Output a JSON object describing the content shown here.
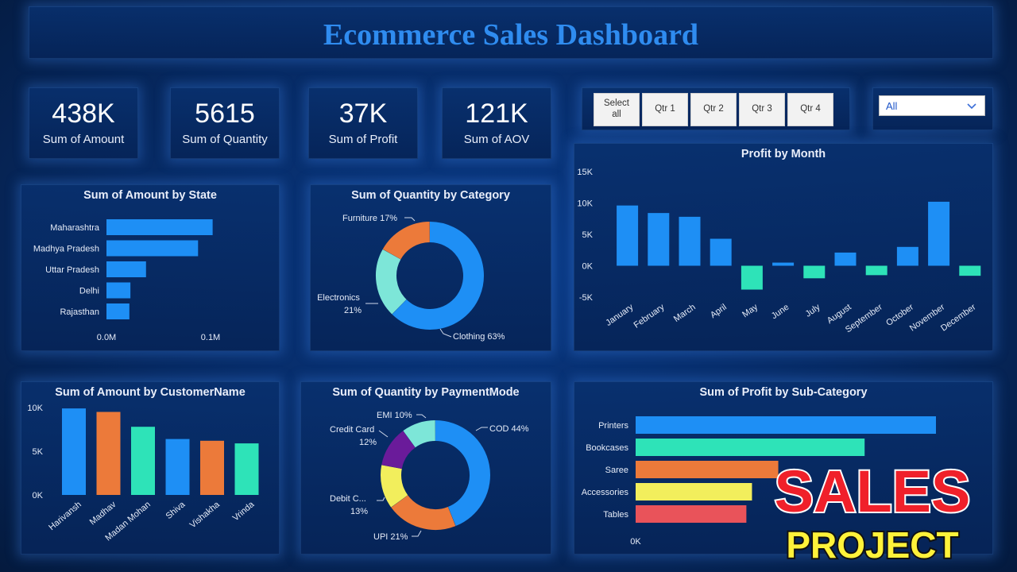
{
  "title": "Ecommerce Sales Dashboard",
  "kpis": [
    {
      "value": "438K",
      "label": "Sum of Amount"
    },
    {
      "value": "5615",
      "label": "Sum of Quantity"
    },
    {
      "value": "37K",
      "label": "Sum of Profit"
    },
    {
      "value": "121K",
      "label": "Sum of AOV"
    }
  ],
  "slicer": {
    "buttons": [
      "Select all",
      "Qtr 1",
      "Qtr 2",
      "Qtr 3",
      "Qtr 4"
    ],
    "dropdown_value": "All"
  },
  "watermark": {
    "line1": "SALES",
    "line2": "PROJECT"
  },
  "colors": {
    "blue": "#1e8ff5",
    "orange": "#ec7a3a",
    "teal": "#2ee3b8",
    "lightteal": "#7de6d8",
    "purple": "#6a1b9a",
    "yellow": "#f2ee5c",
    "red": "#e9535a",
    "title": "#2f8cf0"
  },
  "chart_data": [
    {
      "id": "amount_by_state",
      "type": "bar",
      "orientation": "horizontal",
      "title": "Sum of Amount by State",
      "categories": [
        "Maharashtra",
        "Madhya Pradesh",
        "Uttar Pradesh",
        "Delhi",
        "Rajasthan"
      ],
      "values": [
        0.102,
        0.088,
        0.038,
        0.023,
        0.022
      ],
      "ticks": [
        "0.0M",
        "0.1M"
      ],
      "xlim": [
        0,
        0.1
      ]
    },
    {
      "id": "quantity_by_category",
      "type": "pie",
      "donut": true,
      "title": "Sum of Quantity by Category",
      "categories": [
        "Clothing",
        "Electronics",
        "Furniture"
      ],
      "values": [
        63,
        21,
        17
      ],
      "labels": [
        "Clothing 63%",
        "Electronics",
        "21%",
        "Furniture 17%"
      ]
    },
    {
      "id": "profit_by_month",
      "type": "bar",
      "title": "Profit by Month",
      "categories": [
        "January",
        "February",
        "March",
        "April",
        "May",
        "June",
        "July",
        "August",
        "September",
        "October",
        "November",
        "December"
      ],
      "values": [
        9600,
        8400,
        7800,
        4300,
        -3800,
        500,
        -2000,
        2100,
        -1500,
        3000,
        10200,
        -1600
      ],
      "ylim": [
        -5000,
        15000
      ],
      "ticks": [
        "15K",
        "10K",
        "5K",
        "0K",
        "-5K"
      ]
    },
    {
      "id": "amount_by_customer",
      "type": "bar",
      "title": "Sum of Amount by CustomerName",
      "categories": [
        "Harivansh",
        "Madhav",
        "Madan Mohan",
        "Shiva",
        "Vishakha",
        "Vrinda"
      ],
      "values": [
        9900,
        9500,
        7800,
        6400,
        6200,
        5900
      ],
      "ylim": [
        0,
        10000
      ],
      "ticks": [
        "10K",
        "5K",
        "0K"
      ]
    },
    {
      "id": "quantity_by_paymentmode",
      "type": "pie",
      "donut": true,
      "title": "Sum of Quantity by PaymentMode",
      "categories": [
        "COD",
        "UPI",
        "Debit Card",
        "Credit Card",
        "EMI"
      ],
      "values": [
        44,
        21,
        13,
        12,
        10
      ],
      "labels": [
        "COD 44%",
        "UPI 21%",
        "Debit C...",
        "13%",
        "Credit Card",
        "12%",
        "EMI 10%"
      ]
    },
    {
      "id": "profit_by_subcategory",
      "type": "bar",
      "orientation": "horizontal",
      "title": "Sum of Profit by Sub-Category",
      "categories": [
        "Printers",
        "Bookcases",
        "Saree",
        "Accessories",
        "Tables"
      ],
      "values": [
        8000,
        6100,
        3800,
        3100,
        2950
      ],
      "ticks": [
        "0K"
      ]
    }
  ]
}
